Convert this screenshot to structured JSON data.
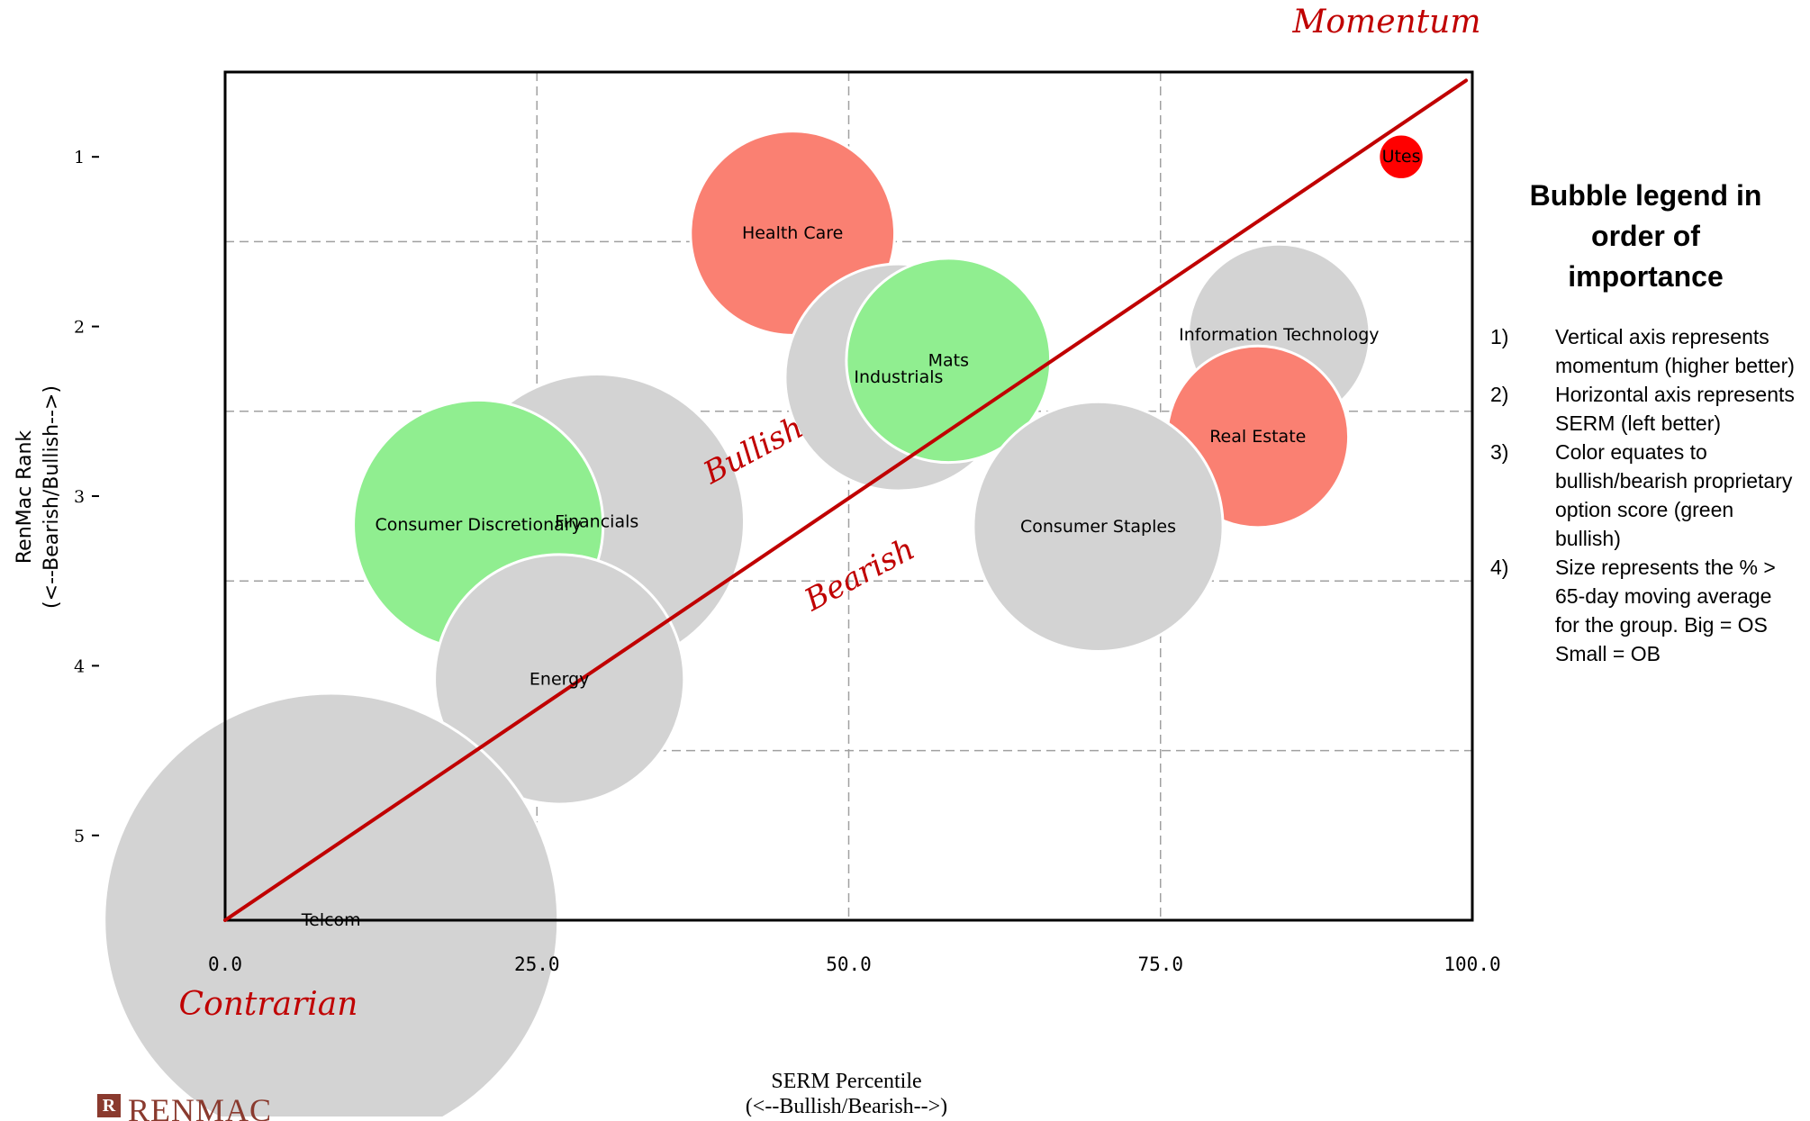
{
  "chart_data": {
    "type": "scatter",
    "subtype": "bubble",
    "xlabel": "SERM Percentile",
    "xlabel2": "(<--Bullish/Bearish-->)",
    "ylabel": "RenMac Rank",
    "ylabel2": "(<--Bearish/Bullish-->)",
    "xlim": [
      0,
      100
    ],
    "ylim": [
      5.5,
      0.5
    ],
    "y_inverted": true,
    "x_ticks": [
      "0.0",
      "25.0",
      "50.0",
      "75.0",
      "100.0"
    ],
    "x_tick_values": [
      0,
      25,
      50,
      75,
      100
    ],
    "y_ticks": [
      "1",
      "2",
      "3",
      "4",
      "5"
    ],
    "y_tick_values": [
      1,
      2,
      3,
      4,
      5
    ],
    "grid": "dashed",
    "x_gridlines": [
      25,
      50,
      75
    ],
    "y_gridlines": [
      1.5,
      2.5,
      3.5,
      4.5
    ],
    "colors": {
      "bullish": "#90ee90",
      "bearish": "#fa8072",
      "neutral": "#d3d3d3",
      "strong_bearish": "#ff0000",
      "annotation": "#c00000"
    },
    "bubbles": [
      {
        "label": "Utes",
        "x": 94.3,
        "y": 1.0,
        "size": 4,
        "color": "#ff0000"
      },
      {
        "label": "Health Care",
        "x": 45.5,
        "y": 1.45,
        "size": 18,
        "color": "#fa8072"
      },
      {
        "label": "Industrials",
        "x": 54.0,
        "y": 2.3,
        "size": 20,
        "color": "#d3d3d3"
      },
      {
        "label": "Mats",
        "x": 58.0,
        "y": 2.2,
        "size": 18,
        "color": "#90ee90"
      },
      {
        "label": "Information Technology",
        "x": 84.5,
        "y": 2.05,
        "size": 16,
        "color": "#d3d3d3"
      },
      {
        "label": "Real Estate",
        "x": 82.8,
        "y": 2.65,
        "size": 16,
        "color": "#fa8072"
      },
      {
        "label": "Financials",
        "x": 29.8,
        "y": 3.15,
        "size": 26,
        "color": "#d3d3d3"
      },
      {
        "label": "Consumer Discretionary",
        "x": 20.3,
        "y": 3.17,
        "size": 22,
        "color": "#90ee90"
      },
      {
        "label": "Consumer Staples",
        "x": 70.0,
        "y": 3.18,
        "size": 22,
        "color": "#d3d3d3"
      },
      {
        "label": "Energy",
        "x": 26.8,
        "y": 4.08,
        "size": 22,
        "color": "#d3d3d3"
      },
      {
        "label": "Telcom",
        "x": 8.5,
        "y": 5.5,
        "size": 40,
        "color": "#d3d3d3"
      }
    ],
    "trend_line": {
      "from": [
        0,
        5.5
      ],
      "to": [
        99.5,
        0.55
      ],
      "color": "#c00000"
    },
    "annotations": {
      "momentum": "Momentum",
      "contrarian": "Contrarian",
      "bullish": "Bullish",
      "bearish": "Bearish"
    }
  },
  "legend": {
    "title_lines": [
      "Bubble legend in",
      "order of",
      "importance"
    ],
    "items": [
      {
        "num": "1)",
        "text": "Vertical axis represents momentum (higher better)"
      },
      {
        "num": "2)",
        "text": "Horizontal axis represents SERM (left better)"
      },
      {
        "num": "3)",
        "text": "Color equates to bullish/bearish proprietary option score (green bullish)"
      },
      {
        "num": "4)",
        "text": "Size represents the % > 65-day moving average for the group.  Big = OS Small = OB"
      }
    ]
  },
  "brand": {
    "logo_letter": "R",
    "name": "RENMAC"
  }
}
